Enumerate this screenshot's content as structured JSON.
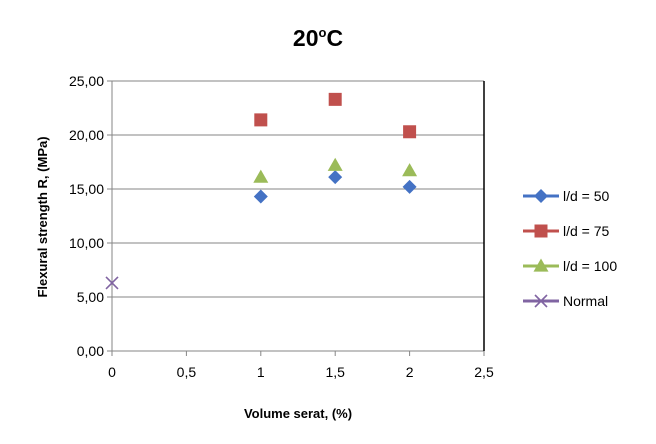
{
  "chart_data": {
    "type": "scatter",
    "title_main": "20",
    "title_sup": "o",
    "title_tail": "C",
    "xlabel": "Volume serat, (%)",
    "ylabel": "Flexural strength R, (MPa)",
    "xlim": [
      0,
      2.5
    ],
    "ylim": [
      0,
      25
    ],
    "x_ticks": [
      0,
      0.5,
      1,
      1.5,
      2,
      2.5
    ],
    "x_tick_labels": [
      "0",
      "0,5",
      "1",
      "1,5",
      "2",
      "2,5"
    ],
    "y_ticks": [
      0,
      5,
      10,
      15,
      20,
      25
    ],
    "y_tick_labels": [
      "0,00",
      "5,00",
      "10,00",
      "15,00",
      "20,00",
      "25,00"
    ],
    "grid": "horizontal",
    "legend_position": "right",
    "series": [
      {
        "name": "l/d = 50",
        "marker": "diamond",
        "color": "#4472C4",
        "x": [
          1,
          1.5,
          2
        ],
        "y": [
          14.3,
          16.1,
          15.2
        ]
      },
      {
        "name": "l/d = 75",
        "marker": "square",
        "color": "#C0504D",
        "x": [
          1,
          1.5,
          2
        ],
        "y": [
          21.4,
          23.3,
          20.3
        ]
      },
      {
        "name": "l/d = 100",
        "marker": "triangle",
        "color": "#9BBB59",
        "x": [
          1,
          1.5,
          2
        ],
        "y": [
          16.1,
          17.2,
          16.7
        ]
      },
      {
        "name": "Normal",
        "marker": "x",
        "color": "#8064A2",
        "x": [
          0
        ],
        "y": [
          6.3
        ]
      }
    ]
  }
}
